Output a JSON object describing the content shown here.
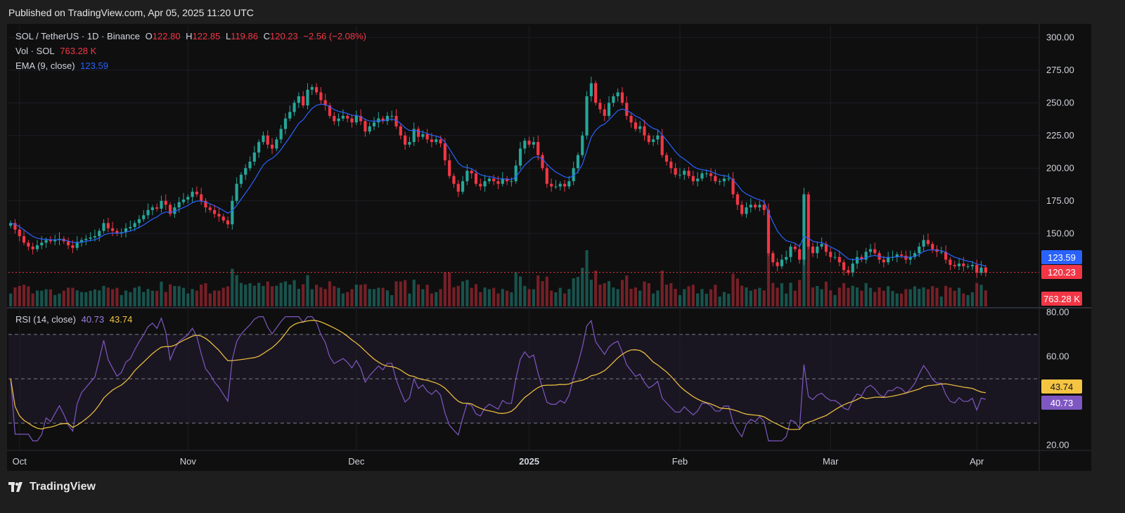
{
  "header": {
    "published": "Published on TradingView.com, Apr 05, 2025 11:20 UTC"
  },
  "legend": {
    "symbol": "SOL / TetherUS · 1D · Binance",
    "o_label": "O",
    "o": "122.80",
    "h_label": "H",
    "h": "122.85",
    "l_label": "L",
    "l": "119.86",
    "c_label": "C",
    "c": "120.23",
    "change": "−2.56 (−2.08%)",
    "vol_label": "Vol · SOL",
    "vol": "763.28 K",
    "ema_label": "EMA (9, close)",
    "ema": "123.59",
    "rsi_label": "RSI (14, close)",
    "rsi": "40.73",
    "rsi_ma": "43.74"
  },
  "badges": {
    "ema": "123.59",
    "last": "120.23",
    "vol": "763.28 K",
    "rsi_ma": "43.74",
    "rsi": "40.73"
  },
  "footer": {
    "brand": "TradingView"
  },
  "colors": {
    "up": "#26a69a",
    "down": "#f23645",
    "ema": "#2962ff",
    "rsi": "#7e57c2",
    "rsi_ma": "#f5c542"
  },
  "chart_data": {
    "type": "candlestick",
    "price_axis": {
      "ticks": [
        "300.00",
        "275.00",
        "250.00",
        "225.00",
        "200.00",
        "175.00",
        "150.00"
      ],
      "range": [
        105,
        305
      ]
    },
    "rsi_axis": {
      "ticks": [
        "80.00",
        "60.00",
        "20.00"
      ],
      "range": [
        18,
        82
      ],
      "bands": [
        70,
        50,
        30
      ]
    },
    "x_ticks": [
      "Oct",
      "Nov",
      "Dec",
      "2025",
      "Feb",
      "Mar",
      "Apr"
    ],
    "closes": [
      158,
      153,
      148,
      143,
      140,
      138,
      141,
      143,
      145,
      144,
      145,
      146,
      144,
      141,
      139,
      143,
      145,
      146,
      147,
      148,
      152,
      158,
      154,
      152,
      150,
      151,
      154,
      155,
      158,
      161,
      164,
      168,
      170,
      169,
      175,
      172,
      165,
      170,
      174,
      176,
      178,
      182,
      180,
      175,
      170,
      168,
      165,
      163,
      160,
      157,
      175,
      188,
      195,
      200,
      205,
      212,
      220,
      225,
      218,
      215,
      222,
      230,
      238,
      243,
      250,
      255,
      248,
      260,
      262,
      258,
      252,
      248,
      240,
      236,
      238,
      240,
      238,
      235,
      240,
      236,
      228,
      232,
      235,
      238,
      236,
      240,
      240,
      232,
      225,
      218,
      220,
      230,
      224,
      226,
      222,
      220,
      222,
      219,
      206,
      194,
      188,
      182,
      190,
      198,
      196,
      188,
      186,
      190,
      192,
      190,
      188,
      192,
      190,
      190,
      202,
      215,
      221,
      218,
      220,
      210,
      200,
      188,
      186,
      186,
      188,
      186,
      190,
      200,
      210,
      225,
      255,
      265,
      250,
      245,
      240,
      250,
      255,
      258,
      250,
      240,
      235,
      230,
      232,
      225,
      220,
      222,
      225,
      210,
      205,
      200,
      195,
      195,
      198,
      194,
      190,
      192,
      196,
      196,
      194,
      190,
      190,
      192,
      192,
      180,
      172,
      165,
      170,
      172,
      170,
      172,
      168,
      135,
      128,
      125,
      130,
      132,
      140,
      138,
      130,
      180,
      140,
      135,
      140,
      142,
      136,
      132,
      132,
      128,
      122,
      120,
      127,
      132,
      130,
      136,
      138,
      135,
      130,
      128,
      132,
      132,
      134,
      133,
      130,
      132,
      135,
      140,
      145,
      142,
      138,
      136,
      136,
      130,
      126,
      125,
      127,
      125,
      125,
      126,
      120,
      124,
      120
    ],
    "ema_last": 123.59,
    "rsi_last": 40.73,
    "rsi_ma_last": 43.74,
    "volume_last": "763.28 K"
  }
}
